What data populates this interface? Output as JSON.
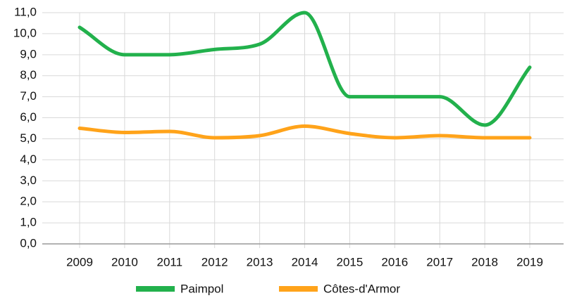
{
  "chart_data": {
    "type": "line",
    "categories": [
      "2009",
      "2010",
      "2011",
      "2012",
      "2013",
      "2014",
      "2015",
      "2016",
      "2017",
      "2018",
      "2019"
    ],
    "series": [
      {
        "name": "Paimpol",
        "color": "#22b14c",
        "values": [
          10.3,
          9.0,
          9.0,
          9.25,
          9.5,
          11.0,
          7.0,
          7.0,
          7.0,
          5.65,
          8.4
        ]
      },
      {
        "name": "Côtes-d'Armor",
        "color": "#ffa31a",
        "values": [
          5.5,
          5.3,
          5.35,
          5.05,
          5.15,
          5.6,
          5.25,
          5.05,
          5.15,
          5.05,
          5.05
        ]
      }
    ],
    "ylim": [
      0,
      11
    ],
    "yticks": [
      {
        "value": 0,
        "label": "0,0"
      },
      {
        "value": 1,
        "label": "1,0"
      },
      {
        "value": 2,
        "label": "2,0"
      },
      {
        "value": 3,
        "label": "3,0"
      },
      {
        "value": 4,
        "label": "4,0"
      },
      {
        "value": 5,
        "label": "5,0"
      },
      {
        "value": 6,
        "label": "6,0"
      },
      {
        "value": 7,
        "label": "7,0"
      },
      {
        "value": 8,
        "label": "8,0"
      },
      {
        "value": 9,
        "label": "9,0"
      },
      {
        "value": 10,
        "label": "10,0"
      },
      {
        "value": 11,
        "label": "11,0"
      }
    ],
    "grid": true,
    "legend": "bottom"
  }
}
